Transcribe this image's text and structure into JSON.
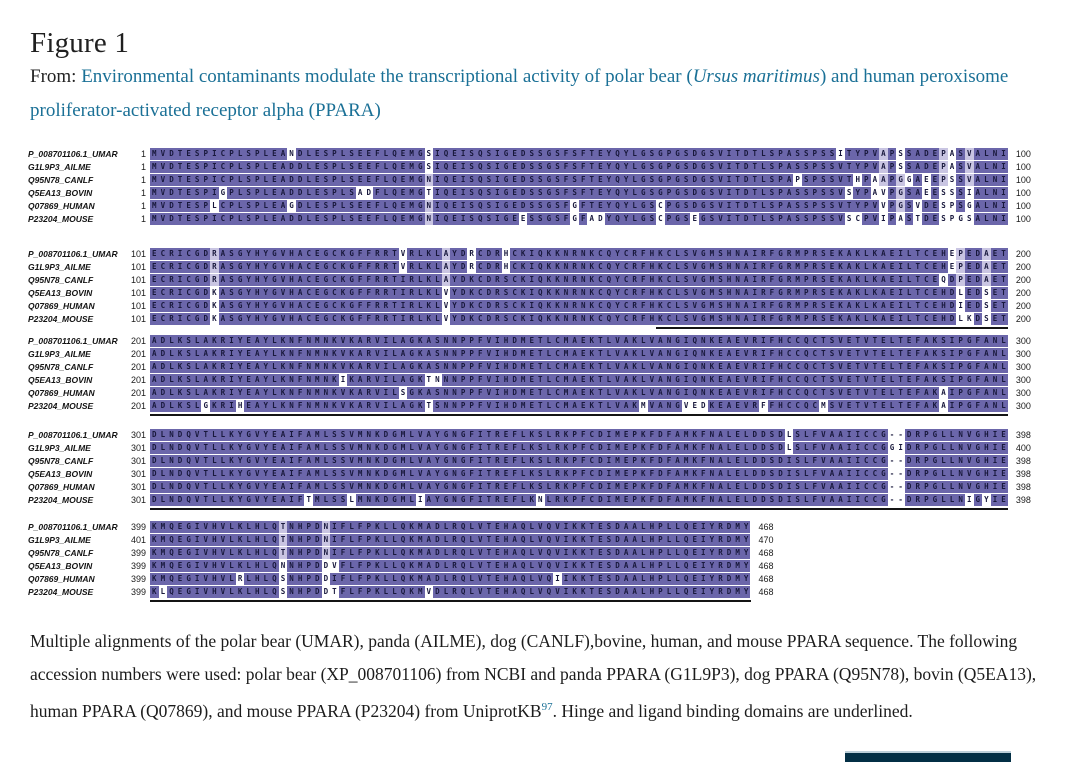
{
  "page": {
    "title": "Figure 1",
    "from_label": "From: ",
    "article_link": {
      "pre_italic": "Environmental contaminants modulate the transcriptional activity of polar bear (",
      "italic": "Ursus maritimus",
      "post_italic": ") and human peroxisome proliferator-activated receptor alpha (PPARA)"
    },
    "caption": {
      "part1": "Multiple alignments of the polar bear (UMAR), panda (AILME), dog (CANLF),bovine, human, and mouse PPARA sequence. The following accession numbers were used: polar bear (XP_008701106) from NCBI and panda PPARA (G1L9P3), dog PPARA (Q95N78), bovin (Q5EA13), human PPARA (Q07869), and mouse PPARA (P23204) from UniprotKB",
      "ref_superscript": "97",
      "part2": ". Hinge and ligand binding domains are underlined."
    },
    "colors": {
      "conserved_bg": "#6b66aa",
      "semi_conserved_bg": "#c9c5e2",
      "letter": "#18183c",
      "link": "#1a7096",
      "underline": "#141414",
      "button_bg": "#032f45"
    },
    "alignment": {
      "labels": [
        "P_008701106.1_UMAR",
        "G1L9P3_AILME",
        "Q95N78_CANLF",
        "Q5EA13_BOVIN",
        "Q07869_HUMAN",
        "P23204_MOUSE"
      ],
      "blocks": [
        {
          "starts": [
            1,
            1,
            1,
            1,
            1,
            1
          ],
          "ends": [
            100,
            100,
            100,
            100,
            100,
            100
          ],
          "underline": null,
          "sequences": [
            "MVDTESPICPLSPLEANDLESPLSEEFLQEMGSIQEISQSIGEDSSGSFSFTEYQYLGSGPGSDGSVITDTLSPASSPSSITYPVAPSSADEPASVALNI",
            "MVDTESPICPLSPLEADDLESPLSEEFLQEMGSIQEISQSIGEDSSGSFSFTEYQYLGSGPGSDGSVITDTLSPASSPSSVTYPVAPSSADEPASVALNI",
            "MVDTESPICPLSPLEADDLESPLSEEFLQEMGNIQEISQSIGEDSSGSFSFTEYQYLGSGPGSDGSVITDTLSPAPSPSSVTHPAAPGGAEEPSSVALNI",
            "MVDTESPIGPLSPLEADDLESPLSADFLQEMGTIQEISQSIGEDSSGSFSFTEYQYLGSGPGSDGSVITDTLSPASSPSSVSYPAVPGSAEESSSIALNI",
            "MVDTESPLCPLSPLEAGDLESPLSEEFLQEMGNIQEISQSIGEDSSGSFGFTEYQYLGSCPGSDGSVITDTLSPASSPSSVTYPVVPGSVDESPSGALNI",
            "MVDTESPICPLSPLEADDLESPLSEEFLQEMGNIQEISQSIGEESSGSFGFADYQYLGSCPGSEGSVITDTLSPASSPSSVSCPVIPASTDESPGSALNI"
          ]
        },
        {
          "starts": [
            101,
            101,
            101,
            101,
            101,
            101
          ],
          "ends": [
            200,
            200,
            200,
            200,
            200,
            200
          ],
          "underline": {
            "from_col": 59,
            "to_col": 100
          },
          "sequences": [
            "ECRICGDRASGYHYGVHACEGCKGFFRRTVRLKLAYDRCDRHCKIQKKNRNKCQYCRFHKCLSVGMSHNAIRFGRMPRSEKAKLKAEILTCEHEPEDAET",
            "ECRICGDRASGYHYGVHACEGCKGFFRRTVRLKLAYDRCDRHCKIQKKNRNKCQYCRFHKCLSVGMSHNAIRFGRMPRSEKAKLKAEILTCEHEPEDAET",
            "ECRICGDRASGYHYGVHACEGCKGFFRRTIRLKLAYDKCDRSCKIQKKNRNKCQYCRFHKCLSVGMSHNAIRFGRMPRSEKAKLKAEILTCEQDPEDAET",
            "ECRICGDKASGYHYGVHACEGCKGFFRRTIRLKLVYDKCDRSCKIQKKNRNKCQYCRFHKCLSVGMSHNAIRFGRMPRSEKAKLKAEILTCEHDLEDSET",
            "ECRICGDKASGYHYGVHACEGCKGFFRRTIRLKLVYDKCDRSCKIQKKNRNKCQYCRFHKCLSVGMSHNAIRFGRMPRSEKAKLKAEILTCEHDIEDSET",
            "ECRICGDKASGYHYGVHACEGCKGFFRRTIRLKLVYDKCDRSCKIQKKNRNKCQYCRFHKCLSVGMSHNAIRFGRMPRSEKAKLKAEILTCEHDLKDSET"
          ]
        },
        {
          "starts": [
            201,
            201,
            201,
            201,
            201,
            201
          ],
          "ends": [
            300,
            300,
            300,
            300,
            300,
            300
          ],
          "underline": {
            "from_col": 0,
            "to_col": 100
          },
          "sequences": [
            "ADLKSLAKRIYEAYLKNFNMNKVKARVILAGKASNNPPFVIHDMETLCMAEKTLVAKLVANGIQNKEAEVRIFHCCQCTSVETVTELTEFAKSIPGFANL",
            "ADLKSLAKRIYEAYLKNFNMNKVKARVILAGKASNNPPFVIHDMETLCMAEKTLVAKLVANGIQNKEAEVRIFHCCQCTSVETVTELTEFAKSIPGFANL",
            "ADLKSLAKRIYEAYLKNFNMNKVKARVILAGKASNNPPFVIHDMETLCMAEKTLVAKLVANGIQNKEAEVRIFHCCQCTSVETVTELTEFAKSIPGFANL",
            "ADLKSLAKRIYEAYLKNFNMNKIKARVILAGKTNNNPPFVIHDMETLCMAEKTLVAKLVANGIQNKEAEVRIFHCCQCTSVETVTELTEFAKSIPGFANL",
            "ADLKSLAKRIYEAYLKNFNMNKVKARVILSGKASNNPPFVIHDMETLCMAEKTLVAKLVANGIQNKEAEVRIFHCCQCTSVETVTELTEFAKAIPGFANL",
            "ADLKSLGKRIHEAYLKNFNMNKVKARVILAGKTSNNPPFVIHDMETLCMAEKTLVAKMVANGVEDKEAEVRFFHCCQCMSVETVTELTEFAKAIPGFANL"
          ]
        },
        {
          "starts": [
            301,
            301,
            301,
            301,
            301,
            301
          ],
          "ends": [
            398,
            400,
            398,
            398,
            398,
            398
          ],
          "underline": {
            "from_col": 0,
            "to_col": 100
          },
          "sequences": [
            "DLNDQVTLLKYGVYEAIFAMLSSVMNKDGMLVAYGNGFITREFLKSLRKPFCDIMEPKFDFAMKFNALELDDSDLSLFVAAIICCG--DRPGLLNVGHIE",
            "DLNDQVTLLKYGVYEAIFAMLSSVMNKDGMLVAYGNGFITREFLKSLRKPFCDIMEPKFDFAMKFNALELDDSDLSLFVAAIICCGGIDRPGLLNVGHIE",
            "DLNDQVTLLKYGVYEAIFAMLSSVMNKDGMLVAYGNGFITREFLKSLRKPFCDIMEPKFDFAMKFNALELDDSDISLFVAAIICCG--DRPGLLNVGHIE",
            "DLNDQVTLLKYGVYEAIFAMLSSVMNKDGMLVAYGNGFITREFLKSLRKPFCDIMEPKFDFAMKFNALELDDSDISLFVAAIICCG--DRPGLLNVGHIE",
            "DLNDQVTLLKYGVYEAIFAMLSSVMNKDGMLVAYGNGFITREFLKSLRKPFCDIMEPKFDFAMKFNALELDDSDISLFVAAIICCG--DRPGLLNVGHIE",
            "DLNDQVTLLKYGVYEAIFTMLSSLMNKDGMLIAYGNGFITREFLKNLRKPFCDIMEPKFDFAMKFNALELDDSDISLFVAAIICCG--DRPGLLNIGYIE"
          ]
        },
        {
          "starts": [
            399,
            401,
            399,
            399,
            399,
            399
          ],
          "ends": [
            468,
            470,
            468,
            468,
            468,
            468
          ],
          "underline": {
            "from_col": 0,
            "to_col": 70
          },
          "sequences": [
            "KMQEGIVHVLKLHLQTNHPDNIFLFPKLLQKMADLRQLVTEHAQLVQVIKKTESDAALHPLLQEIYRDMY",
            "KMQEGIVHVLKLHLQTNHPDNIFLFPKLLQKMADLRQLVTEHAQLVQVIKKTESDAALHPLLQEIYRDMY",
            "KMQEGIVHVLKLHLQTNHPDNIFLFPKLLQKMADLRQLVTEHAQLVQVIKKTESDAALHPLLQEIYRDMY",
            "KMQEGIVHVLKLHLQNNHPDDVFLFPKLLQKMADLRQLVTEHAQLVQVIKKTESDAALHPLLQEIYRDMY",
            "KMQEGIVHVLRLHLQSNHPDDIFLFPKLLQKMADLRQLVTEHAQLVQIIKKTESDAALHPLLQEIYRDMY",
            "KLQEGIVHVLKLHLQSNHPDDTFLFPKLLQKMVDLRQLVTEHAQLVQVIKKTESDAALHPLLQEIYRDMY"
          ]
        }
      ]
    }
  }
}
